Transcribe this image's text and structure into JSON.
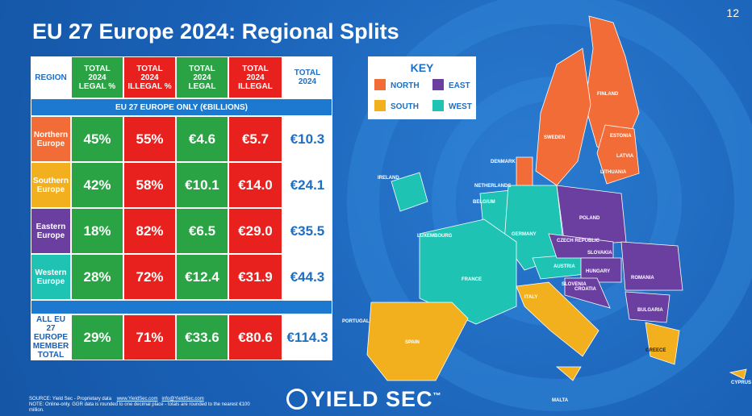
{
  "page_number": "12",
  "header": {
    "title": "EU 27 Europe 2024: Regional Splits"
  },
  "table": {
    "columns": [
      "REGION",
      "TOTAL\n2024\nLEGAL %",
      "TOTAL\n2024\nILLEGAL %",
      "TOTAL\n2024\nLEGAL",
      "TOTAL\n2024\nILLEGAL",
      "TOTAL\n2024"
    ],
    "subheader": "EU 27 EUROPE ONLY (€BILLIONS)",
    "rows": [
      [
        "Northern\nEurope",
        "45%",
        "55%",
        "€4.6",
        "€5.7",
        "€10.3"
      ],
      [
        "Southern\nEurope",
        "42%",
        "58%",
        "€10.1",
        "€14.0",
        "€24.1"
      ],
      [
        "Eastern\nEurope",
        "18%",
        "82%",
        "€6.5",
        "€29.0",
        "€35.5"
      ],
      [
        "Western\nEurope",
        "28%",
        "72%",
        "€12.4",
        "€31.9",
        "€44.3"
      ]
    ],
    "total_row": [
      "ALL EU\n27\nEUROPE\nMEMBER\nTOTAL",
      "29%",
      "71%",
      "€33.6",
      "€80.6",
      "€114.3"
    ]
  },
  "key": {
    "title": "KEY",
    "items": [
      {
        "label": "NORTH",
        "color": "#f26c37"
      },
      {
        "label": "EAST",
        "color": "#6b3fa0"
      },
      {
        "label": "SOUTH",
        "color": "#f2b01e"
      },
      {
        "label": "WEST",
        "color": "#1fc3b4"
      }
    ]
  },
  "map": {
    "labels": [
      "FINLAND",
      "SWEDEN",
      "ESTONIA",
      "LATVIA",
      "LITHUANIA",
      "DENMARK",
      "IRELAND",
      "NETHERLANDS",
      "BELGIUM",
      "LUXEMBOURG",
      "GERMANY",
      "POLAND",
      "CZECH\nREPUBLIC",
      "SLOVAKIA",
      "AUSTRIA",
      "HUNGARY",
      "ROMANIA",
      "SLOVENIA",
      "CROATIA",
      "FRANCE",
      "ITALY",
      "BULGARIA",
      "PORTUGAL",
      "SPAIN",
      "GREECE",
      "MALTA",
      "CYPRUS"
    ]
  },
  "footer": {
    "source": "SOURCE: Yield Sec - Proprietary data",
    "url": "www.YieldSec.com",
    "email": "info@YieldSec.com",
    "note": "NOTE: Online-only. GGR data is rounded to one decimal place - totals are rounded to the nearest €100 million.",
    "logo": "YIELD SEC",
    "trademark": "™"
  }
}
